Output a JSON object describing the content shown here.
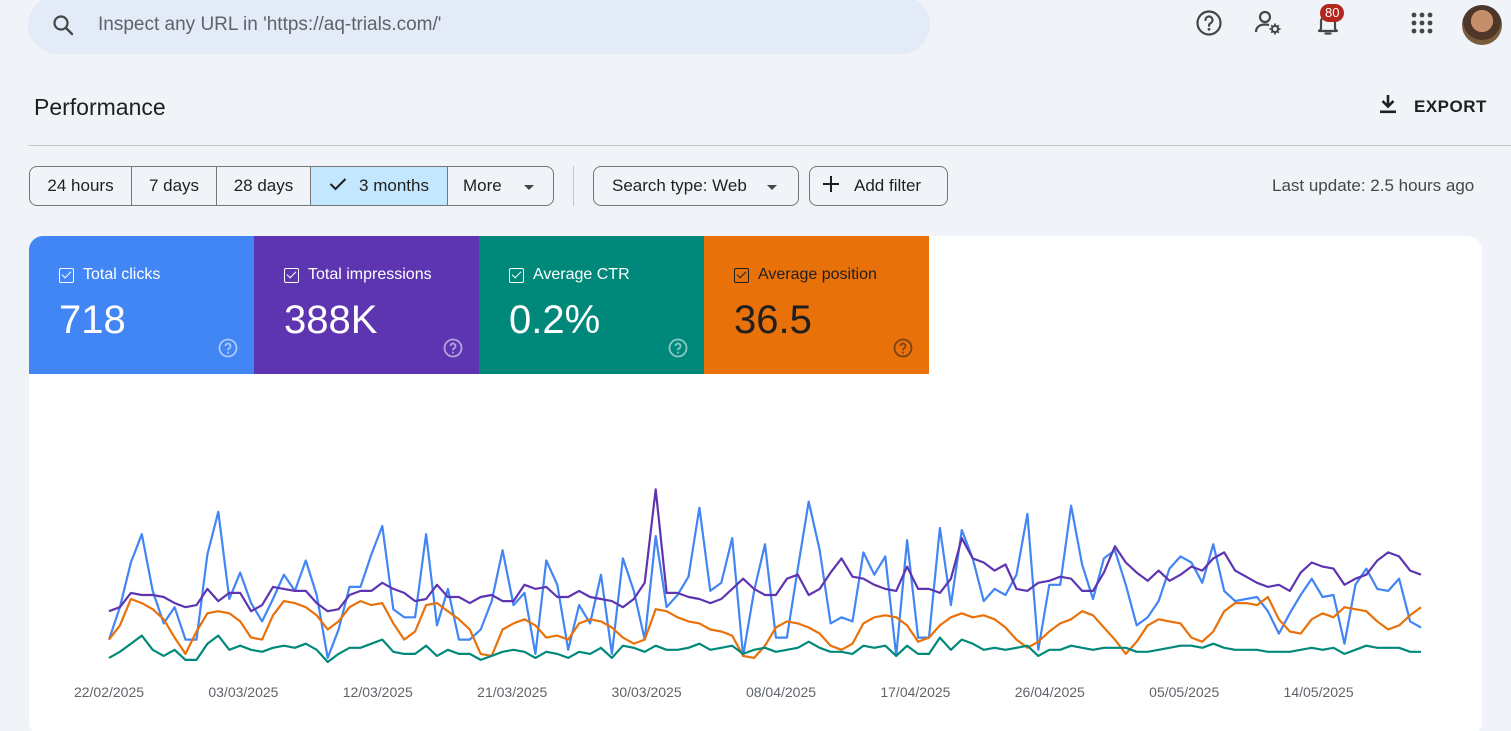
{
  "search": {
    "placeholder": "Inspect any URL in 'https://aq-trials.com/'"
  },
  "topbar": {
    "notification_count": "80"
  },
  "header": {
    "title": "Performance",
    "export_label": "EXPORT"
  },
  "ranges": [
    {
      "label": "24 hours",
      "selected": false
    },
    {
      "label": "7 days",
      "selected": false
    },
    {
      "label": "28 days",
      "selected": false
    },
    {
      "label": "3 months",
      "selected": true
    },
    {
      "label": "More",
      "selected": false
    }
  ],
  "filters": {
    "search_type": "Search type: Web",
    "add_filter": "Add filter"
  },
  "last_update": "Last update: 2.5 hours ago",
  "metrics": [
    {
      "label": "Total clicks",
      "value": "718",
      "color": "#4285f4",
      "text_color": "#ffffff"
    },
    {
      "label": "Total impressions",
      "value": "388K",
      "color": "#5e35b1",
      "text_color": "#ffffff"
    },
    {
      "label": "Average CTR",
      "value": "0.2%",
      "color": "#00897b",
      "text_color": "#ffffff"
    },
    {
      "label": "Average position",
      "value": "36.5",
      "color": "#e8710a",
      "text_color": "#1f1f1f"
    }
  ],
  "chart_data": {
    "type": "line",
    "x_start": "22/02/2025",
    "x_end": "27/05/2025",
    "tick_labels": [
      "22/02/2025",
      "03/03/2025",
      "12/03/2025",
      "21/03/2025",
      "30/03/2025",
      "08/04/2025",
      "17/04/2025",
      "26/04/2025",
      "05/05/2025",
      "14/05/2025"
    ],
    "y_scale": "normalized",
    "series": [
      {
        "name": "Total clicks",
        "color": "#4285f4",
        "values": [
          12,
          28,
          50,
          64,
          36,
          20,
          28,
          12,
          12,
          54,
          75,
          32,
          45,
          30,
          21,
          32,
          44,
          36,
          51,
          34,
          3,
          17,
          38,
          38,
          54,
          68,
          27,
          23,
          23,
          64,
          19,
          37,
          12,
          12,
          17,
          31,
          56,
          29,
          35,
          5,
          51,
          39,
          7,
          29,
          20,
          44,
          5,
          52,
          36,
          12,
          63,
          28,
          34,
          43,
          77,
          36,
          40,
          62,
          4,
          36,
          59,
          13,
          13,
          47,
          80,
          56,
          20,
          23,
          21,
          55,
          44,
          53,
          4,
          61,
          13,
          13,
          67,
          29,
          66,
          52,
          31,
          37,
          34,
          44,
          74,
          7,
          39,
          39,
          78,
          49,
          32,
          52,
          56,
          39,
          19,
          23,
          31,
          47,
          53,
          50,
          40,
          59,
          36,
          31,
          32,
          33,
          26,
          15,
          25,
          34,
          42,
          33,
          34,
          10,
          39,
          47,
          37,
          36,
          42,
          21,
          18
        ]
      },
      {
        "name": "Total impressions",
        "color": "#5e35b1",
        "values": [
          26,
          28,
          35,
          34,
          34,
          33,
          30,
          28,
          29,
          37,
          31,
          35,
          35,
          26,
          29,
          38,
          37,
          36,
          36,
          30,
          26,
          27,
          34,
          36,
          36,
          40,
          37,
          35,
          31,
          32,
          39,
          33,
          33,
          30,
          33,
          34,
          31,
          31,
          39,
          37,
          38,
          33,
          33,
          36,
          33,
          32,
          31,
          28,
          32,
          40,
          86,
          35,
          35,
          33,
          32,
          30,
          32,
          37,
          42,
          37,
          34,
          34,
          42,
          44,
          34,
          37,
          45,
          52,
          43,
          42,
          39,
          37,
          36,
          48,
          37,
          37,
          35,
          42,
          62,
          52,
          50,
          46,
          49,
          37,
          36,
          40,
          41,
          43,
          42,
          36,
          36,
          45,
          58,
          50,
          45,
          41,
          46,
          41,
          44,
          48,
          46,
          52,
          55,
          46,
          43,
          40,
          38,
          39,
          36,
          45,
          50,
          48,
          47,
          39,
          42,
          44,
          51,
          55,
          53,
          46,
          44
        ]
      },
      {
        "name": "Average position",
        "color": "#e8710a",
        "values": [
          12,
          19,
          32,
          30,
          27,
          22,
          13,
          5,
          16,
          25,
          26,
          25,
          21,
          13,
          12,
          24,
          31,
          30,
          28,
          24,
          17,
          21,
          28,
          31,
          29,
          30,
          20,
          12,
          16,
          29,
          30,
          26,
          22,
          17,
          5,
          4,
          17,
          20,
          22,
          19,
          13,
          14,
          12,
          20,
          22,
          21,
          18,
          13,
          10,
          12,
          27,
          26,
          23,
          21,
          20,
          17,
          16,
          14,
          4,
          3,
          9,
          18,
          21,
          20,
          18,
          15,
          9,
          7,
          10,
          20,
          23,
          24,
          23,
          19,
          11,
          13,
          19,
          23,
          25,
          23,
          24,
          22,
          18,
          12,
          8,
          11,
          16,
          20,
          22,
          26,
          24,
          18,
          12,
          5,
          11,
          19,
          22,
          21,
          20,
          13,
          11,
          16,
          26,
          30,
          30,
          29,
          33,
          22,
          16,
          15,
          22,
          25,
          23,
          28,
          27,
          26,
          21,
          17,
          19,
          24,
          28
        ]
      },
      {
        "name": "Average CTR",
        "color": "#00897b",
        "values": [
          3,
          6,
          10,
          14,
          7,
          4,
          7,
          2,
          2,
          10,
          14,
          7,
          9,
          7,
          6,
          8,
          9,
          8,
          10,
          7,
          1,
          5,
          8,
          8,
          10,
          12,
          6,
          5,
          5,
          9,
          4,
          7,
          5,
          5,
          2,
          4,
          6,
          7,
          6,
          3,
          6,
          5,
          3,
          6,
          5,
          8,
          3,
          9,
          8,
          6,
          9,
          7,
          7,
          8,
          10,
          7,
          8,
          9,
          5,
          7,
          8,
          6,
          7,
          8,
          11,
          8,
          6,
          6,
          5,
          9,
          8,
          9,
          4,
          9,
          5,
          5,
          13,
          7,
          12,
          10,
          7,
          8,
          7,
          8,
          9,
          4,
          7,
          7,
          9,
          8,
          7,
          8,
          8,
          8,
          6,
          6,
          7,
          8,
          9,
          9,
          8,
          10,
          8,
          7,
          7,
          7,
          6,
          6,
          6,
          7,
          8,
          7,
          8,
          5,
          7,
          9,
          8,
          8,
          8,
          6,
          6
        ]
      }
    ]
  }
}
